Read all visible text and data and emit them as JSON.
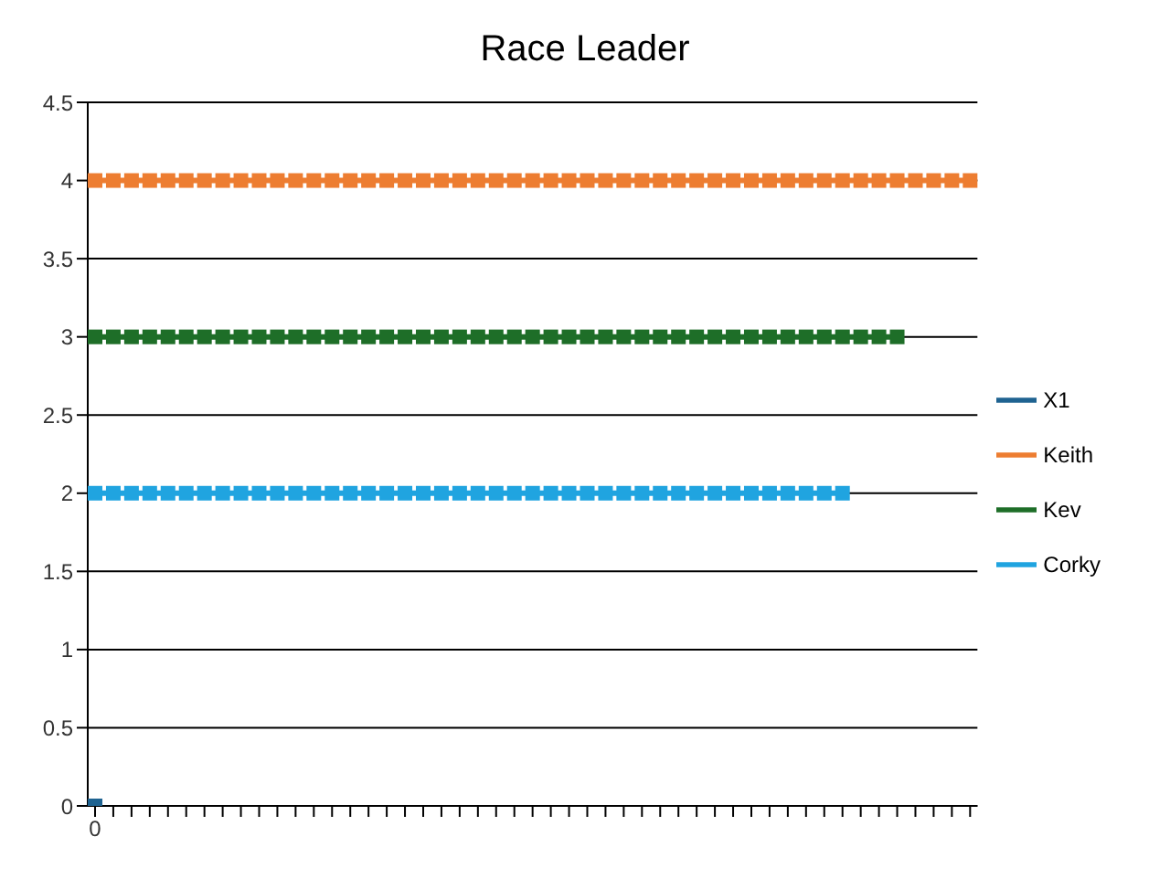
{
  "chart_data": {
    "type": "line",
    "title": "Race Leader",
    "categories": [
      "0",
      null,
      null,
      null,
      null,
      null,
      null,
      null,
      null,
      null,
      null,
      null,
      null,
      null,
      null,
      null,
      null,
      null,
      null,
      null,
      null,
      null,
      null,
      null,
      null,
      null,
      null,
      null,
      null,
      null,
      null,
      null,
      null,
      null,
      null,
      null,
      null,
      null,
      null,
      null,
      null,
      null,
      null,
      null,
      null,
      null,
      null,
      null,
      null
    ],
    "series": [
      {
        "name": "X1",
        "color": "#1f6391",
        "values": [
          0,
          null,
          null,
          null,
          null,
          null,
          null,
          null,
          null,
          null,
          null,
          null,
          null,
          null,
          null,
          null,
          null,
          null,
          null,
          null,
          null,
          null,
          null,
          null,
          null,
          null,
          null,
          null,
          null,
          null,
          null,
          null,
          null,
          null,
          null,
          null,
          null,
          null,
          null,
          null,
          null,
          null,
          null,
          null,
          null,
          null,
          null,
          null,
          null
        ]
      },
      {
        "name": "Keith",
        "color": "#ed7d31",
        "values": [
          4,
          4,
          4,
          4,
          4,
          4,
          4,
          4,
          4,
          4,
          4,
          4,
          4,
          4,
          4,
          4,
          4,
          4,
          4,
          4,
          4,
          4,
          4,
          4,
          4,
          4,
          4,
          4,
          4,
          4,
          4,
          4,
          4,
          4,
          4,
          4,
          4,
          4,
          4,
          4,
          4,
          4,
          4,
          4,
          4,
          4,
          4,
          4,
          4
        ]
      },
      {
        "name": "Kev",
        "color": "#1e6e28",
        "values": [
          3,
          3,
          3,
          3,
          3,
          3,
          3,
          3,
          3,
          3,
          3,
          3,
          3,
          3,
          3,
          3,
          3,
          3,
          3,
          3,
          3,
          3,
          3,
          3,
          3,
          3,
          3,
          3,
          3,
          3,
          3,
          3,
          3,
          3,
          3,
          3,
          3,
          3,
          3,
          3,
          3,
          3,
          3,
          3,
          3,
          null,
          null,
          null,
          null
        ]
      },
      {
        "name": "Corky",
        "color": "#20a4e0",
        "values": [
          2,
          2,
          2,
          2,
          2,
          2,
          2,
          2,
          2,
          2,
          2,
          2,
          2,
          2,
          2,
          2,
          2,
          2,
          2,
          2,
          2,
          2,
          2,
          2,
          2,
          2,
          2,
          2,
          2,
          2,
          2,
          2,
          2,
          2,
          2,
          2,
          2,
          2,
          2,
          2,
          2,
          2,
          null,
          null,
          null,
          null,
          null,
          null,
          null
        ]
      }
    ],
    "ylim": [
      0,
      4.5
    ],
    "yticks": [
      0,
      0.5,
      1,
      1.5,
      2,
      2.5,
      3,
      3.5,
      4,
      4.5
    ],
    "grid": "y",
    "legend": "right",
    "marker": "square"
  }
}
